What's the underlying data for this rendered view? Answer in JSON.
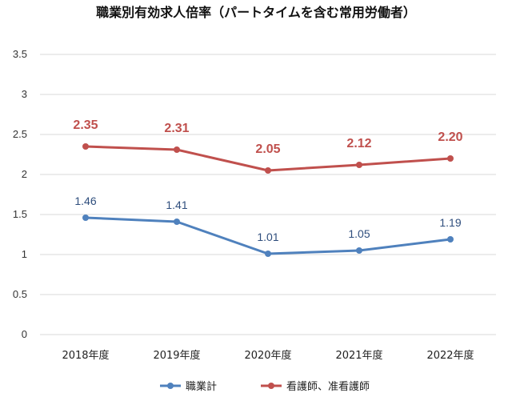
{
  "chart_data": {
    "type": "line",
    "title": "職業別有効求人倍率（パートタイムを含む常用労働者）",
    "xlabel": "",
    "ylabel": "",
    "categories": [
      "2018年度",
      "2019年度",
      "2020年度",
      "2021年度",
      "2022年度"
    ],
    "ylim": [
      0,
      3.5
    ],
    "yticks": [
      "0",
      "0.5",
      "1",
      "1.5",
      "2",
      "2.5",
      "3",
      "3.5"
    ],
    "grid": true,
    "legend": "bottom",
    "series": [
      {
        "name": "職業計",
        "values": [
          1.46,
          1.41,
          1.01,
          1.05,
          1.19
        ],
        "labels": [
          "1.46",
          "1.41",
          "1.01",
          "1.05",
          "1.19"
        ],
        "color": "#4f81bd",
        "label_color": "#2f4e7d"
      },
      {
        "name": "看護師、准看護師",
        "values": [
          2.35,
          2.31,
          2.05,
          2.12,
          2.2
        ],
        "labels": [
          "2.35",
          "2.31",
          "2.05",
          "2.12",
          "2.20"
        ],
        "color": "#c0504d",
        "label_color": "#c0504d"
      }
    ]
  }
}
